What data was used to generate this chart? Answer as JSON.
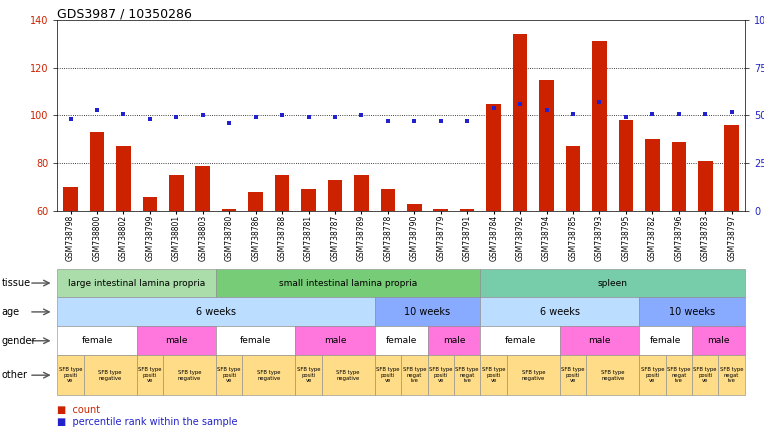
{
  "title": "GDS3987 / 10350286",
  "samples": [
    "GSM738798",
    "GSM738800",
    "GSM738802",
    "GSM738799",
    "GSM738801",
    "GSM738803",
    "GSM738780",
    "GSM738786",
    "GSM738788",
    "GSM738781",
    "GSM738787",
    "GSM738789",
    "GSM738778",
    "GSM738790",
    "GSM738779",
    "GSM738791",
    "GSM738784",
    "GSM738792",
    "GSM738794",
    "GSM738785",
    "GSM738793",
    "GSM738795",
    "GSM738782",
    "GSM738796",
    "GSM738783",
    "GSM738797"
  ],
  "counts": [
    70,
    93,
    87,
    66,
    75,
    79,
    61,
    68,
    75,
    69,
    73,
    75,
    69,
    63,
    61,
    61,
    105,
    134,
    115,
    87,
    131,
    98,
    90,
    89,
    81,
    96
  ],
  "percentiles": [
    48,
    53,
    51,
    48,
    49,
    50,
    46,
    49,
    50,
    49,
    49,
    50,
    47,
    47,
    47,
    47,
    54,
    56,
    53,
    51,
    57,
    49,
    51,
    51,
    51,
    52
  ],
  "ylim_left": [
    60,
    140
  ],
  "yticks_left": [
    60,
    80,
    100,
    120,
    140
  ],
  "yticks_right": [
    0,
    25,
    50,
    75,
    100
  ],
  "ytick_labels_right": [
    "0",
    "25",
    "50",
    "75",
    "100%"
  ],
  "bar_color": "#cc2200",
  "dot_color": "#2222cc",
  "tissue_groups": [
    {
      "label": "large intestinal lamina propria",
      "start": 0,
      "end": 6,
      "color": "#aaddaa"
    },
    {
      "label": "small intestinal lamina propria",
      "start": 6,
      "end": 16,
      "color": "#77cc77"
    },
    {
      "label": "spleen",
      "start": 16,
      "end": 26,
      "color": "#77ccaa"
    }
  ],
  "age_groups": [
    {
      "label": "6 weeks",
      "start": 0,
      "end": 12,
      "color": "#bbddff"
    },
    {
      "label": "10 weeks",
      "start": 12,
      "end": 16,
      "color": "#88aaff"
    },
    {
      "label": "6 weeks",
      "start": 16,
      "end": 22,
      "color": "#bbddff"
    },
    {
      "label": "10 weeks",
      "start": 22,
      "end": 26,
      "color": "#88aaff"
    }
  ],
  "gender_groups": [
    {
      "label": "female",
      "start": 0,
      "end": 3,
      "color": "#ffffff"
    },
    {
      "label": "male",
      "start": 3,
      "end": 6,
      "color": "#ff77dd"
    },
    {
      "label": "female",
      "start": 6,
      "end": 9,
      "color": "#ffffff"
    },
    {
      "label": "male",
      "start": 9,
      "end": 12,
      "color": "#ff77dd"
    },
    {
      "label": "female",
      "start": 12,
      "end": 14,
      "color": "#ffffff"
    },
    {
      "label": "male",
      "start": 14,
      "end": 16,
      "color": "#ff77dd"
    },
    {
      "label": "female",
      "start": 16,
      "end": 19,
      "color": "#ffffff"
    },
    {
      "label": "male",
      "start": 19,
      "end": 22,
      "color": "#ff77dd"
    },
    {
      "label": "female",
      "start": 22,
      "end": 24,
      "color": "#ffffff"
    },
    {
      "label": "male",
      "start": 24,
      "end": 26,
      "color": "#ff77dd"
    }
  ],
  "other_pattern": [
    [
      0,
      1,
      "SFB type\npositi\nve"
    ],
    [
      1,
      3,
      "SFB type\nnegative"
    ],
    [
      3,
      4,
      "SFB type\npositi\nve"
    ],
    [
      4,
      6,
      "SFB type\nnegative"
    ],
    [
      6,
      7,
      "SFB type\npositi\nve"
    ],
    [
      7,
      9,
      "SFB type\nnegative"
    ],
    [
      9,
      10,
      "SFB type\npositi\nve"
    ],
    [
      10,
      12,
      "SFB type\nnegative"
    ],
    [
      12,
      13,
      "SFB type\npositi\nve"
    ],
    [
      13,
      14,
      "SFB type\nnegat\nive"
    ],
    [
      14,
      15,
      "SFB type\npositi\nve"
    ],
    [
      15,
      16,
      "SFB type\nnegat\nive"
    ],
    [
      16,
      17,
      "SFB type\npositi\nve"
    ],
    [
      17,
      19,
      "SFB type\nnegative"
    ],
    [
      19,
      20,
      "SFB type\npositi\nve"
    ],
    [
      20,
      22,
      "SFB type\nnegative"
    ],
    [
      22,
      23,
      "SFB type\npositi\nve"
    ],
    [
      23,
      24,
      "SFB type\nnegat\nive"
    ],
    [
      24,
      25,
      "SFB type\npositi\nve"
    ],
    [
      25,
      26,
      "SFB type\nnegat\nive"
    ]
  ],
  "other_color": "#ffdd88"
}
